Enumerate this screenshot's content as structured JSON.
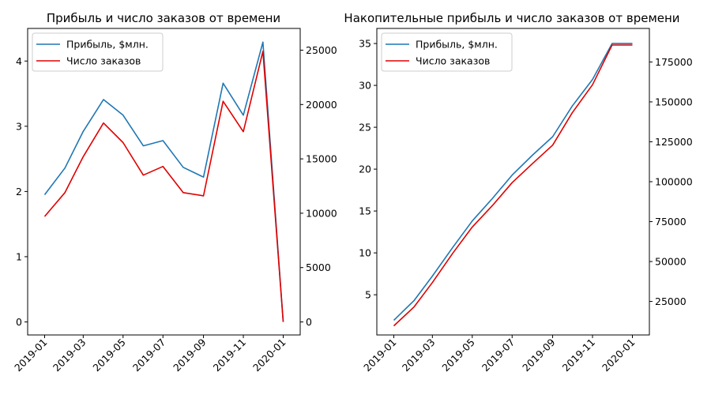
{
  "chart_data": [
    {
      "type": "line",
      "title": "Прибыль и число заказов от времени",
      "x": [
        "2019-01-01",
        "2019-02-01",
        "2019-03-01",
        "2019-04-01",
        "2019-05-01",
        "2019-06-01",
        "2019-07-01",
        "2019-08-01",
        "2019-09-01",
        "2019-10-01",
        "2019-11-01",
        "2019-12-01",
        "2020-01-01"
      ],
      "xticks": [
        "2019-01",
        "2019-03",
        "2019-05",
        "2019-07",
        "2019-09",
        "2019-11",
        "2020-01"
      ],
      "xlim": [
        "2018-12-06",
        "2020-01-27"
      ],
      "left_axis": {
        "ylim": [
          -0.2,
          4.5
        ],
        "ticks": [
          0,
          1,
          2,
          3,
          4
        ]
      },
      "right_axis": {
        "ylim": [
          -1200,
          27000
        ],
        "ticks": [
          0,
          5000,
          10000,
          15000,
          20000,
          25000
        ]
      },
      "series": [
        {
          "name": "Прибыль, $млн.",
          "axis": "left",
          "color": "#1f77b4",
          "values": [
            1.95,
            2.36,
            2.92,
            3.41,
            3.17,
            2.7,
            2.78,
            2.37,
            2.22,
            3.66,
            3.17,
            4.29,
            0.0
          ]
        },
        {
          "name": "Число заказов",
          "axis": "right",
          "color": "#e00000",
          "values": [
            9700,
            11900,
            15200,
            18300,
            16500,
            13500,
            14300,
            11900,
            11600,
            20300,
            17500,
            24900,
            0
          ]
        }
      ],
      "legend": "top-left",
      "grid": false
    },
    {
      "type": "line",
      "title": "Накопительные прибыль и число заказов от времени",
      "x": [
        "2019-01-01",
        "2019-02-01",
        "2019-03-01",
        "2019-04-01",
        "2019-05-01",
        "2019-06-01",
        "2019-07-01",
        "2019-08-01",
        "2019-09-01",
        "2019-10-01",
        "2019-11-01",
        "2019-12-01",
        "2020-01-01"
      ],
      "xticks": [
        "2019-01",
        "2019-03",
        "2019-05",
        "2019-07",
        "2019-09",
        "2019-11",
        "2020-01"
      ],
      "xlim": [
        "2018-12-06",
        "2020-01-27"
      ],
      "left_axis": {
        "ylim": [
          0.2,
          36.8
        ],
        "ticks": [
          5,
          10,
          15,
          20,
          25,
          30,
          35
        ]
      },
      "right_axis": {
        "ylim": [
          4000,
          196000
        ],
        "ticks": [
          25000,
          50000,
          75000,
          100000,
          125000,
          150000,
          175000
        ]
      },
      "series": [
        {
          "name": "Прибыль, $млн.",
          "axis": "left",
          "color": "#1f77b4",
          "values": [
            1.95,
            4.31,
            7.23,
            10.64,
            13.81,
            16.51,
            19.29,
            21.66,
            23.88,
            27.54,
            30.71,
            35.0,
            35.0
          ]
        },
        {
          "name": "Число заказов",
          "axis": "right",
          "color": "#e00000",
          "values": [
            9700,
            21600,
            36800,
            55100,
            71600,
            85100,
            99400,
            111300,
            122900,
            143200,
            160700,
            185600,
            185600
          ]
        }
      ],
      "legend": "top-left",
      "grid": false
    }
  ]
}
